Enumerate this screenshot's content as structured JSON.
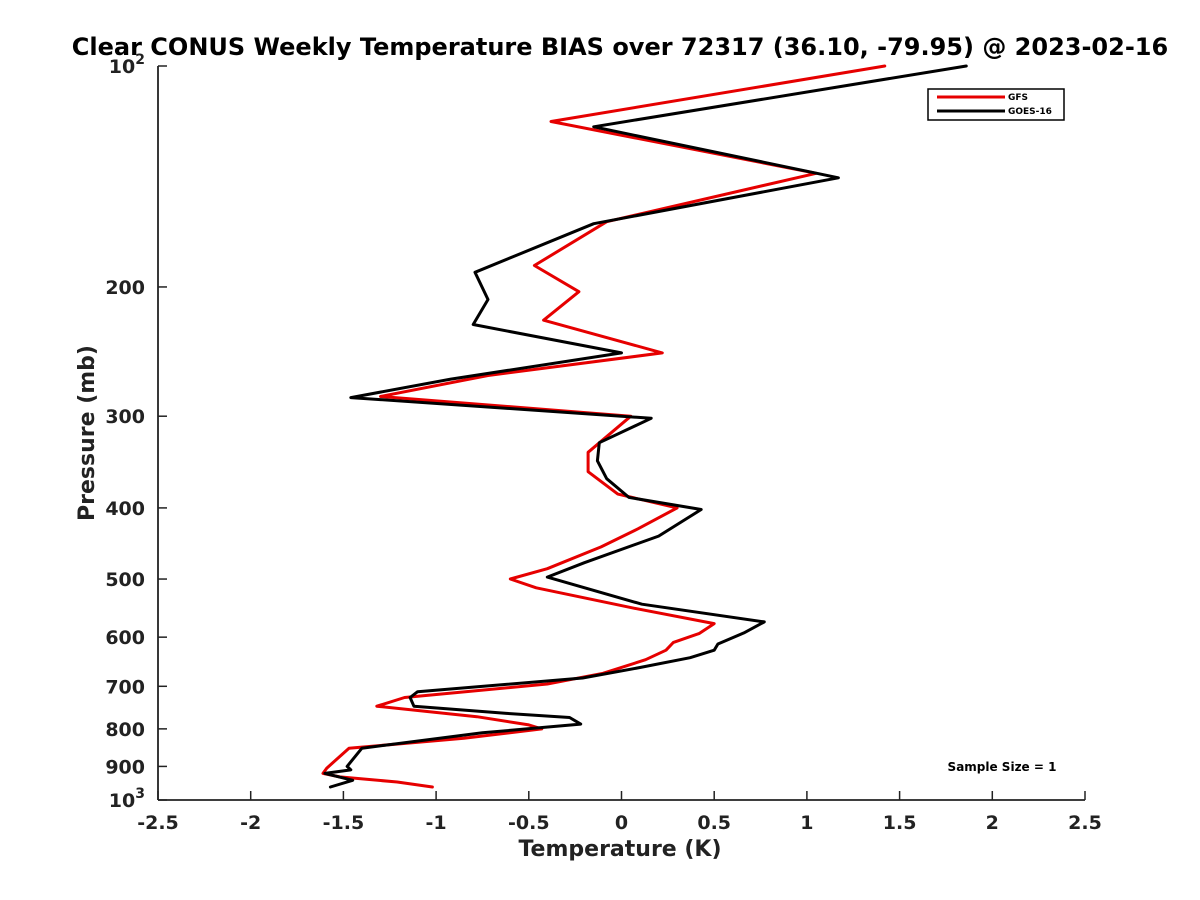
{
  "chart_data": {
    "type": "line",
    "title": "Clear CONUS Weekly Temperature BIAS over 72317 (36.10, -79.95) @ 2023-02-16",
    "xlabel": "Temperature (K)",
    "ylabel": "Pressure (mb)",
    "xlim": [
      -2.5,
      2.5
    ],
    "ylim": [
      100,
      1000
    ],
    "y_scale": "log",
    "y_reversed": true,
    "grid": false,
    "legend_position": "top-right",
    "x_ticks": [
      "-2.5",
      "-2",
      "-1.5",
      "-1",
      "-0.5",
      "0",
      "0.5",
      "1",
      "1.5",
      "2",
      "2.5"
    ],
    "y_ticks": [
      {
        "value": 100,
        "base": "10",
        "exp": "2"
      },
      {
        "value": 200,
        "base": "200",
        "exp": ""
      },
      {
        "value": 300,
        "base": "300",
        "exp": ""
      },
      {
        "value": 400,
        "base": "400",
        "exp": ""
      },
      {
        "value": 500,
        "base": "500",
        "exp": ""
      },
      {
        "value": 600,
        "base": "600",
        "exp": ""
      },
      {
        "value": 700,
        "base": "700",
        "exp": ""
      },
      {
        "value": 800,
        "base": "800",
        "exp": ""
      },
      {
        "value": 900,
        "base": "900",
        "exp": ""
      },
      {
        "value": 1000,
        "base": "10",
        "exp": "3"
      }
    ],
    "series": [
      {
        "name": "GFS",
        "color": "#e60000",
        "points": [
          [
            1.42,
            100
          ],
          [
            -0.38,
            119
          ],
          [
            1.05,
            140
          ],
          [
            -0.08,
            163
          ],
          [
            -0.47,
            187
          ],
          [
            -0.23,
            203
          ],
          [
            -0.42,
            222
          ],
          [
            0.22,
            246
          ],
          [
            -0.72,
            264
          ],
          [
            -1.3,
            282
          ],
          [
            0.05,
            300
          ],
          [
            -0.18,
            336
          ],
          [
            -0.18,
            357
          ],
          [
            -0.02,
            383
          ],
          [
            0.3,
            400
          ],
          [
            0.09,
            427
          ],
          [
            -0.11,
            452
          ],
          [
            -0.4,
            484
          ],
          [
            -0.6,
            500
          ],
          [
            -0.46,
            514
          ],
          [
            0.07,
            548
          ],
          [
            0.5,
            575
          ],
          [
            0.42,
            593
          ],
          [
            0.28,
            610
          ],
          [
            0.24,
            625
          ],
          [
            0.13,
            644
          ],
          [
            -0.1,
            672
          ],
          [
            -0.4,
            695
          ],
          [
            -1.17,
            725
          ],
          [
            -1.32,
            745
          ],
          [
            -0.78,
            770
          ],
          [
            -0.5,
            790
          ],
          [
            -0.43,
            800
          ],
          [
            -0.85,
            824
          ],
          [
            -1.47,
            850
          ],
          [
            -1.59,
            905
          ],
          [
            -1.61,
            920
          ],
          [
            -1.52,
            930
          ],
          [
            -1.21,
            945
          ],
          [
            -1.02,
            960
          ]
        ]
      },
      {
        "name": "GOES-16",
        "color": "#000000",
        "points": [
          [
            1.86,
            100
          ],
          [
            -0.15,
            121
          ],
          [
            1.17,
            142
          ],
          [
            -0.15,
            164
          ],
          [
            -0.79,
            191
          ],
          [
            -0.72,
            208
          ],
          [
            -0.8,
            225
          ],
          [
            0.0,
            246
          ],
          [
            -0.92,
            267
          ],
          [
            -1.46,
            283
          ],
          [
            0.16,
            302
          ],
          [
            -0.12,
            326
          ],
          [
            -0.13,
            345
          ],
          [
            -0.08,
            365
          ],
          [
            0.04,
            387
          ],
          [
            0.43,
            402
          ],
          [
            0.2,
            437
          ],
          [
            -0.2,
            475
          ],
          [
            -0.4,
            497
          ],
          [
            0.11,
            541
          ],
          [
            0.77,
            572
          ],
          [
            0.66,
            592
          ],
          [
            0.52,
            613
          ],
          [
            0.5,
            625
          ],
          [
            0.37,
            640
          ],
          [
            0.1,
            660
          ],
          [
            -0.21,
            682
          ],
          [
            -1.1,
            712
          ],
          [
            -1.14,
            725
          ],
          [
            -1.12,
            745
          ],
          [
            -0.62,
            762
          ],
          [
            -0.28,
            772
          ],
          [
            -0.22,
            788
          ],
          [
            -0.75,
            810
          ],
          [
            -1.4,
            850
          ],
          [
            -1.48,
            900
          ],
          [
            -1.46,
            910
          ],
          [
            -1.6,
            920
          ],
          [
            -1.45,
            940
          ],
          [
            -1.57,
            960
          ]
        ]
      }
    ],
    "annotations": [
      "Sample Size = 1"
    ]
  }
}
